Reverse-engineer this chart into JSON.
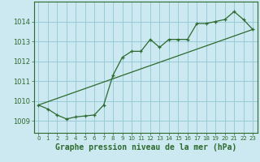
{
  "title": "Graphe pression niveau de la mer (hPa)",
  "bg_color": "#cce8f0",
  "grid_color": "#99ccd8",
  "line_color": "#2d6a2d",
  "xlim": [
    -0.5,
    23.5
  ],
  "ylim": [
    1008.4,
    1015.0
  ],
  "yticks": [
    1009,
    1010,
    1011,
    1012,
    1013,
    1014
  ],
  "xticks": [
    0,
    1,
    2,
    3,
    4,
    5,
    6,
    7,
    8,
    9,
    10,
    11,
    12,
    13,
    14,
    15,
    16,
    17,
    18,
    19,
    20,
    21,
    22,
    23
  ],
  "main_line": [
    [
      0,
      1009.8
    ],
    [
      1,
      1009.6
    ],
    [
      2,
      1009.3
    ],
    [
      3,
      1009.1
    ],
    [
      4,
      1009.2
    ],
    [
      5,
      1009.25
    ],
    [
      6,
      1009.3
    ],
    [
      7,
      1009.8
    ],
    [
      8,
      1011.3
    ],
    [
      9,
      1012.2
    ],
    [
      10,
      1012.5
    ],
    [
      11,
      1012.5
    ],
    [
      12,
      1013.1
    ],
    [
      13,
      1012.7
    ],
    [
      14,
      1013.1
    ],
    [
      15,
      1013.1
    ],
    [
      16,
      1013.1
    ],
    [
      17,
      1013.9
    ],
    [
      18,
      1013.9
    ],
    [
      19,
      1014.0
    ],
    [
      20,
      1014.1
    ],
    [
      21,
      1014.5
    ],
    [
      22,
      1014.1
    ],
    [
      23,
      1013.6
    ]
  ],
  "trend_line": [
    [
      0,
      1009.8
    ],
    [
      23,
      1013.6
    ]
  ],
  "xlabel": "Graphe pression niveau de la mer (hPa)",
  "xlabel_fontsize": 7,
  "ytick_fontsize": 6,
  "xtick_fontsize": 5
}
